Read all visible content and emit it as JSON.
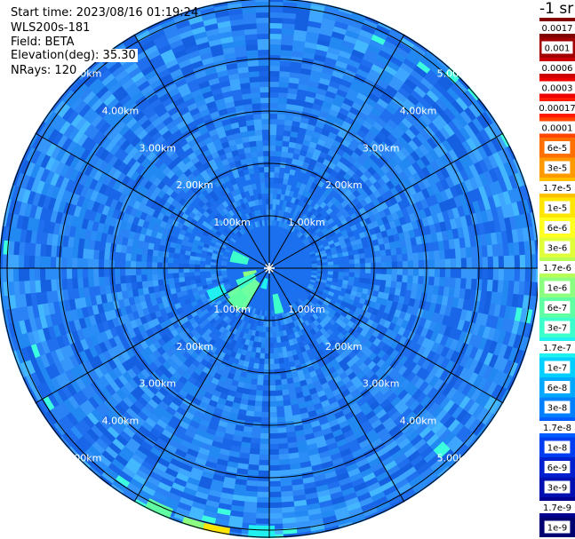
{
  "info": {
    "start_time": "Start time: 2023/08/16 01:19:24",
    "instrument": "WLS200s-181",
    "field": "Field: BETA",
    "elevation": "Elevation(deg): 35.30",
    "nrays": "NRays: 120"
  },
  "colorbar": {
    "units": "-1 sr",
    "labels": [
      "0.0017",
      "0.001",
      "0.0006",
      "0.0003",
      "0.00017",
      "0.0001",
      "6e-5",
      "3e-5",
      "1.7e-5",
      "1e-5",
      "6e-6",
      "3e-6",
      "1.7e-6",
      "1e-6",
      "6e-7",
      "3e-7",
      "1.7e-7",
      "1e-7",
      "6e-8",
      "3e-8",
      "1.7e-8",
      "1e-8",
      "6e-9",
      "3e-9",
      "1.7e-9",
      "1e-9"
    ],
    "colors": [
      "#800000",
      "#a00000",
      "#cc0000",
      "#ee0000",
      "#ff1a00",
      "#ff4500",
      "#ff7000",
      "#ff9900",
      "#ffc000",
      "#ffe600",
      "#ffff20",
      "#e0ff3a",
      "#b8ff5a",
      "#8cff80",
      "#60ffa4",
      "#3cffcc",
      "#20f0f0",
      "#00cfff",
      "#00a8ff",
      "#0080ff",
      "#005cff",
      "#003cf0",
      "#0020d0",
      "#0010b0",
      "#000090",
      "#000070"
    ]
  },
  "chart_data": {
    "type": "heatmap",
    "projection": "polar PPI",
    "rings_km": [
      1,
      2,
      3,
      4,
      5
    ],
    "ring_labels": [
      "1.00km",
      "2.00km",
      "3.00km",
      "4.00km",
      "5.00km"
    ],
    "radial_spokes": 12,
    "max_range_km": 5.8,
    "dominant_value": "1e-8 to 3e-8",
    "near_field_features": "green/cyan patches within 1 km to the south-west"
  }
}
